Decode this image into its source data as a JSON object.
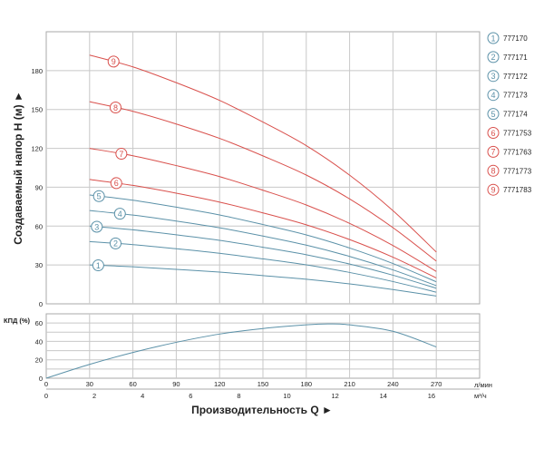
{
  "chart_data": [
    {
      "type": "line",
      "ylabel": "Создаваемый напор H (м) ►",
      "xlim": [
        0,
        300
      ],
      "ylim": [
        0,
        210
      ],
      "y_ticks": [
        "0",
        "30",
        "60",
        "90",
        "120",
        "150",
        "180"
      ],
      "grid": true,
      "legend_placement": "right",
      "x": [
        30,
        60,
        90,
        120,
        150,
        180,
        210,
        240,
        270
      ],
      "series": [
        {
          "label": "1",
          "name": "777170",
          "color": "#5b91a8",
          "values": [
            30,
            28.6,
            26.6,
            24.5,
            21.8,
            19,
            15.4,
            11,
            6
          ]
        },
        {
          "label": "2",
          "name": "777171",
          "color": "#5b91a8",
          "values": [
            48,
            45.7,
            42.5,
            39,
            34.7,
            30.1,
            24.2,
            17.2,
            9
          ]
        },
        {
          "label": "3",
          "name": "777172",
          "color": "#5b91a8",
          "values": [
            60,
            57.1,
            53.3,
            49,
            43.7,
            37.9,
            30.7,
            22.1,
            12
          ]
        },
        {
          "label": "4",
          "name": "777173",
          "color": "#5b91a8",
          "values": [
            72,
            68.5,
            63.9,
            58.7,
            52.3,
            45.3,
            36.6,
            26.2,
            14
          ]
        },
        {
          "label": "5",
          "name": "777174",
          "color": "#5b91a8",
          "values": [
            84,
            80,
            74.6,
            68.6,
            61.2,
            53.2,
            43.1,
            31.1,
            17
          ]
        },
        {
          "label": "6",
          "name": "7771753",
          "color": "#d9504c",
          "values": [
            96,
            91.4,
            85.4,
            78.5,
            70.2,
            61,
            49.6,
            36,
            20
          ]
        },
        {
          "label": "7",
          "name": "7771763",
          "color": "#d9504c",
          "values": [
            120,
            114.3,
            106.7,
            98.2,
            87.7,
            76.3,
            62.1,
            45,
            25
          ]
        },
        {
          "label": "8",
          "name": "7771773",
          "color": "#d9504c",
          "values": [
            156,
            148.6,
            138.8,
            127.7,
            114.2,
            99.4,
            81,
            58.8,
            33
          ]
        },
        {
          "label": "9",
          "name": "7771783",
          "color": "#d9504c",
          "values": [
            192,
            182.9,
            170.7,
            157,
            140.3,
            122.1,
            99.3,
            71.9,
            40
          ]
        }
      ]
    },
    {
      "type": "line",
      "ylabel": "КПД (%)",
      "xlabel": "Производительность Q ►",
      "xlim": [
        0,
        300
      ],
      "ylim": [
        0,
        70
      ],
      "y_ticks": [
        "0",
        "20",
        "40",
        "60"
      ],
      "x_ticks_lpm": [
        "0",
        "30",
        "60",
        "90",
        "120",
        "150",
        "180",
        "210",
        "240",
        "270"
      ],
      "x_unit_lpm": "л/мин",
      "x_ticks_m3h": [
        "0",
        "2",
        "4",
        "6",
        "8",
        "10",
        "12",
        "14",
        "16"
      ],
      "x_unit_m3h": "м³/ч",
      "grid": true,
      "series": [
        {
          "color": "#5b91a8",
          "x": [
            0,
            30,
            60,
            90,
            120,
            150,
            180,
            195,
            210,
            240,
            270
          ],
          "values": [
            0,
            15,
            28,
            39,
            48,
            54,
            58,
            59,
            58,
            51,
            34
          ]
        }
      ]
    }
  ]
}
